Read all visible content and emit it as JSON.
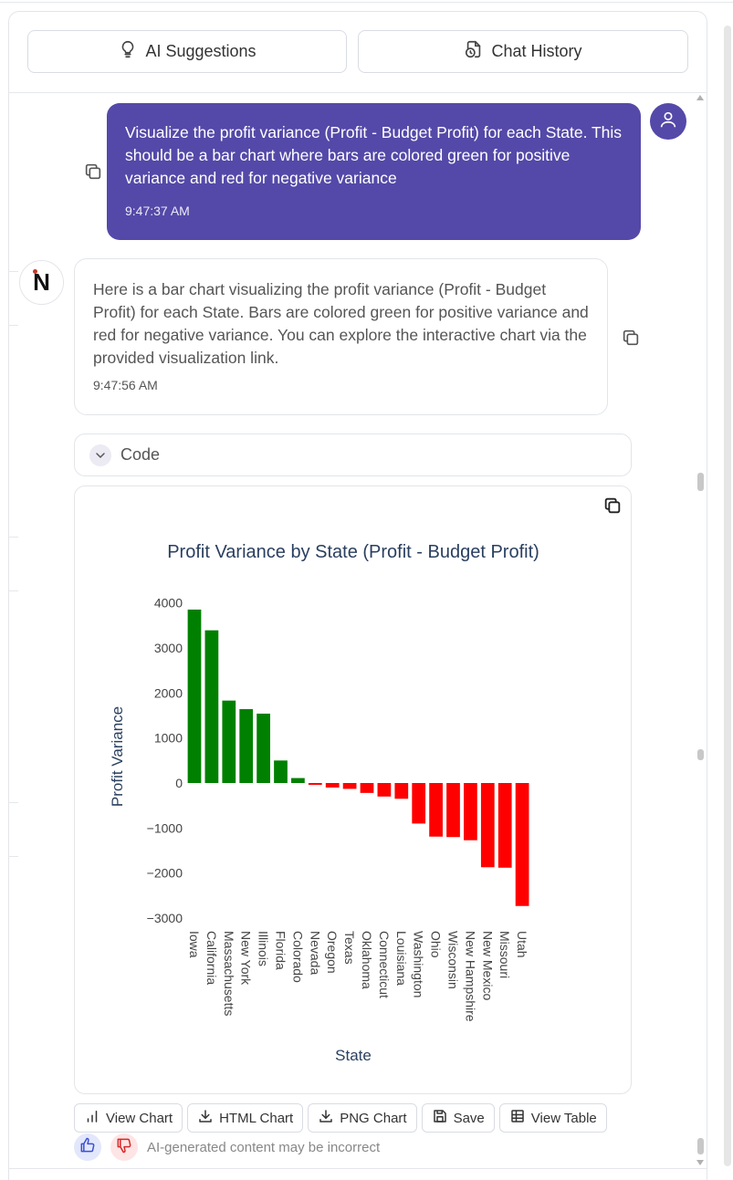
{
  "header": {
    "ai_suggestions_label": "AI Suggestions",
    "chat_history_label": "Chat History"
  },
  "user_message": {
    "text": "Visualize the profit variance (Profit - Budget Profit) for each State. This should be a bar chart where bars are colored green for positive variance and red for negative variance",
    "time": "9:47:37 AM"
  },
  "assistant_message": {
    "avatar_letter": "N",
    "text": "Here is a bar chart visualizing the profit variance (Profit - Budget Profit) for each State. Bars are colored green for positive variance and red for negative variance. You can explore the interactive chart via the provided visualization link.",
    "time": "9:47:56 AM"
  },
  "code_section": {
    "label": "Code"
  },
  "chart_data": {
    "type": "bar",
    "title": "Profit Variance by State (Profit - Budget Profit)",
    "xlabel": "State",
    "ylabel": "Profit Variance",
    "categories": [
      "Iowa",
      "California",
      "Massachusetts",
      "New York",
      "Illinois",
      "Florida",
      "Colorado",
      "Nevada",
      "Oregon",
      "Texas",
      "Oklahoma",
      "Connecticut",
      "Louisiana",
      "Washington",
      "Ohio",
      "Wisconsin",
      "New Hampshire",
      "New Mexico",
      "Missouri",
      "Utah"
    ],
    "values": [
      3850,
      3390,
      1830,
      1640,
      1540,
      500,
      110,
      -40,
      -100,
      -130,
      -220,
      -300,
      -350,
      -900,
      -1190,
      -1200,
      -1270,
      -1870,
      -1880,
      -2730
    ],
    "ylim": [
      -3000,
      4000
    ],
    "yticks": [
      4000,
      3000,
      2000,
      1000,
      0,
      -1000,
      -2000,
      -3000
    ],
    "ytick_labels": [
      "4000",
      "3000",
      "2000",
      "1000",
      "0",
      "−1000",
      "−2000",
      "−3000"
    ],
    "positive_color": "#008000",
    "negative_color": "#ff0000",
    "grid": false
  },
  "actions": {
    "view_chart": "View Chart",
    "html_chart": "HTML Chart",
    "png_chart": "PNG Chart",
    "save": "Save",
    "view_table": "View Table"
  },
  "feedback": {
    "disclaimer": "AI-generated content may be incorrect"
  },
  "colors": {
    "accent": "#5449a8",
    "border": "#e3e5ea"
  }
}
